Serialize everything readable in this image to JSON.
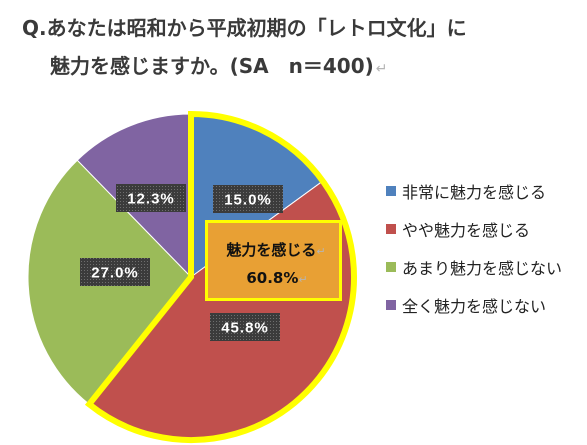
{
  "chart_data": {
    "type": "pie",
    "title": [
      "Q.あなたは昭和から平成初期の「レトロ文化」に",
      "魅力を感じますか。(SA　n＝400)"
    ],
    "categories": [
      "非常に魅力を感じる",
      "やや魅力を感じる",
      "あまり魅力を感じない",
      "全く魅力を感じない"
    ],
    "values": [
      15.0,
      45.8,
      27.0,
      12.3
    ],
    "value_labels": [
      "15.0%",
      "45.8%",
      "27.0%",
      "12.3%"
    ],
    "colors": [
      "#4F81BD",
      "#C0504D",
      "#9BBB59",
      "#8064A2"
    ],
    "legend": "right",
    "highlight": {
      "slices": [
        0,
        1
      ],
      "label": "魅力を感じる",
      "value": 60.8,
      "value_label": "60.8%",
      "outline_color": "#FFFF00",
      "box_color": "#E8A034"
    }
  },
  "paragraph_mark": "↵"
}
